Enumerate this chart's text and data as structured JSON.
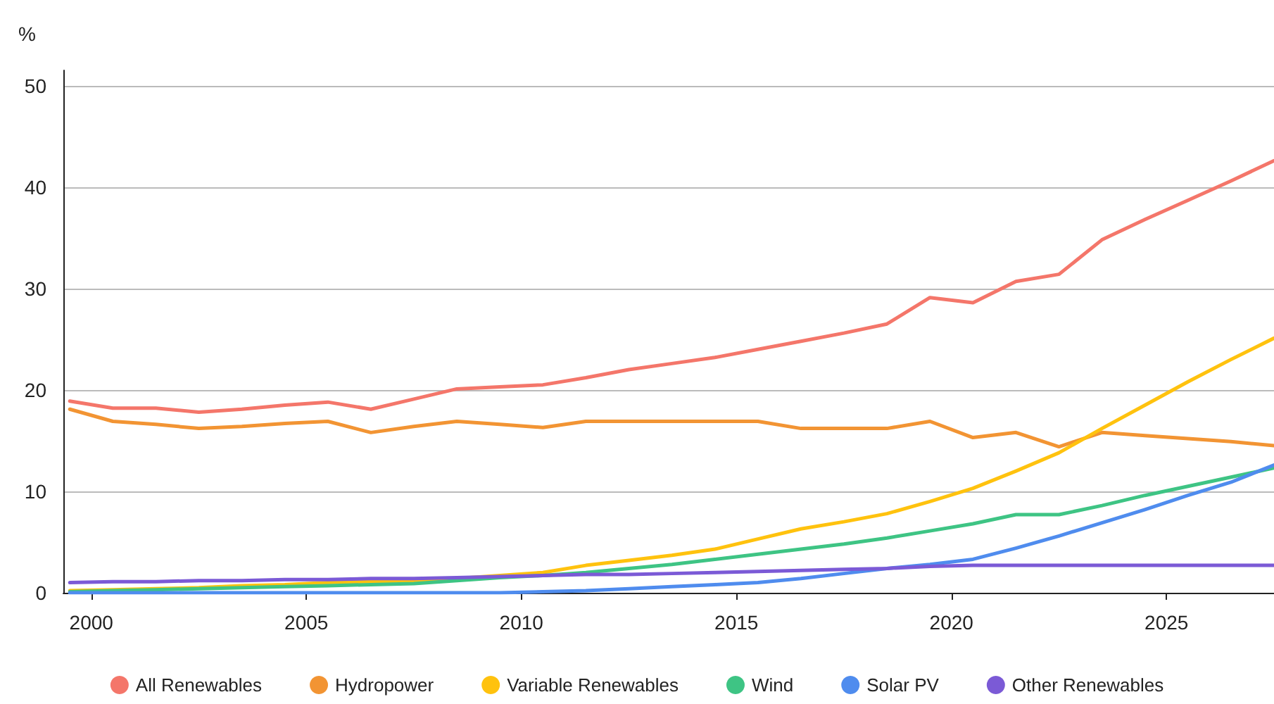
{
  "chart_data": {
    "type": "line",
    "ylabel": "%",
    "x": [
      1999.5,
      2000.5,
      2001.5,
      2002.5,
      2003.5,
      2004.5,
      2005.5,
      2006.5,
      2007.5,
      2008.5,
      2009.5,
      2010.5,
      2011.5,
      2012.5,
      2013.5,
      2014.5,
      2015.5,
      2016.5,
      2017.5,
      2018.5,
      2019.5,
      2020.5,
      2021.5,
      2022.5,
      2023.5,
      2024.5,
      2025.5,
      2026.5,
      2027.5
    ],
    "series": [
      {
        "name": "All Renewables",
        "color": "#f4766a",
        "values": [
          18.9,
          18.2,
          18.2,
          17.8,
          18.1,
          18.5,
          18.8,
          18.1,
          19.1,
          20.1,
          20.3,
          20.5,
          21.2,
          22.0,
          22.6,
          23.2,
          24.0,
          24.8,
          25.6,
          26.5,
          29.1,
          28.6,
          30.7,
          31.4,
          34.8,
          36.8,
          38.7,
          40.6,
          42.6
        ]
      },
      {
        "name": "Hydropower",
        "color": "#f29433",
        "values": [
          18.1,
          16.9,
          16.6,
          16.2,
          16.4,
          16.7,
          16.9,
          15.8,
          16.4,
          16.9,
          16.6,
          16.3,
          16.9,
          16.9,
          16.9,
          16.9,
          16.9,
          16.2,
          16.2,
          16.2,
          16.9,
          15.3,
          15.8,
          14.4,
          15.8,
          15.5,
          15.2,
          14.9,
          14.5
        ]
      },
      {
        "name": "Variable Renewables",
        "color": "#ffc20e",
        "values": [
          0.2,
          0.3,
          0.4,
          0.5,
          0.7,
          0.8,
          1.0,
          1.1,
          1.2,
          1.4,
          1.7,
          2.0,
          2.7,
          3.2,
          3.7,
          4.3,
          5.3,
          6.3,
          7.0,
          7.8,
          9.0,
          10.3,
          12.0,
          13.8,
          16.2,
          18.5,
          20.8,
          23.0,
          25.1
        ]
      },
      {
        "name": "Wind",
        "color": "#3ec484",
        "values": [
          0.1,
          0.2,
          0.3,
          0.4,
          0.5,
          0.6,
          0.7,
          0.8,
          0.9,
          1.2,
          1.5,
          1.7,
          2.0,
          2.4,
          2.8,
          3.3,
          3.8,
          4.3,
          4.8,
          5.4,
          6.1,
          6.8,
          7.7,
          7.7,
          8.6,
          9.6,
          10.5,
          11.4,
          12.3
        ]
      },
      {
        "name": "Solar PV",
        "color": "#4f8cee",
        "values": [
          0,
          0,
          0,
          0,
          0,
          0,
          0,
          0,
          0,
          0,
          0,
          0.1,
          0.2,
          0.4,
          0.6,
          0.8,
          1.0,
          1.4,
          1.9,
          2.4,
          2.8,
          3.3,
          4.4,
          5.6,
          6.9,
          8.2,
          9.6,
          10.9,
          12.6
        ]
      },
      {
        "name": "Other Renewables",
        "color": "#7b5ad6",
        "values": [
          1.0,
          1.1,
          1.1,
          1.2,
          1.2,
          1.3,
          1.3,
          1.4,
          1.4,
          1.5,
          1.6,
          1.7,
          1.8,
          1.8,
          1.9,
          2.0,
          2.1,
          2.2,
          2.3,
          2.4,
          2.6,
          2.7,
          2.7,
          2.7,
          2.7,
          2.7,
          2.7,
          2.7,
          2.7
        ]
      }
    ],
    "xlim": [
      1999.35,
      2027.5
    ],
    "xticks": [
      2000,
      2005,
      2010,
      2015,
      2020,
      2025
    ],
    "ylim": [
      0,
      51.5
    ],
    "yticks": [
      0,
      10,
      20,
      30,
      40,
      50
    ],
    "grid": "y",
    "legend": "bottom",
    "marker": "none",
    "line_style": "solid"
  }
}
